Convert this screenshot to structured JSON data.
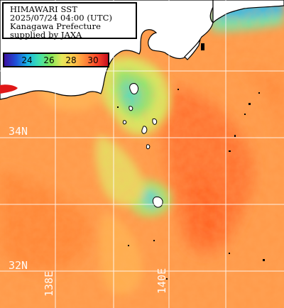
{
  "caption": {
    "line1": "HIMAWARI SST",
    "line2": "2025/07/24 04:00 (UTC)",
    "line3": "Kanagawa Prefecture",
    "line4": "supplied by JAXA"
  },
  "legend": {
    "ticks": [
      "24",
      "26",
      "28",
      "30"
    ],
    "colors": [
      "#3b0fa0",
      "#1f4fd8",
      "#19b4e6",
      "#3ee0b0",
      "#7fe85a",
      "#e6e85a",
      "#ffc84a",
      "#ff8a3a",
      "#ff4a2a",
      "#c80f1e"
    ]
  },
  "grid": {
    "lat_labels": [
      "34N",
      "32N"
    ],
    "lon_labels": [
      "138E",
      "140E"
    ]
  },
  "colors": {
    "land": "#ffffff",
    "coast": "#000000",
    "grid_line": "#ffffff",
    "sea_base": "#ff9a48",
    "sea_warm": "#ff7a32",
    "sea_cool": "#f0d060",
    "sea_cold": "#8fe46e",
    "sea_coldest": "#3fd8d0"
  }
}
